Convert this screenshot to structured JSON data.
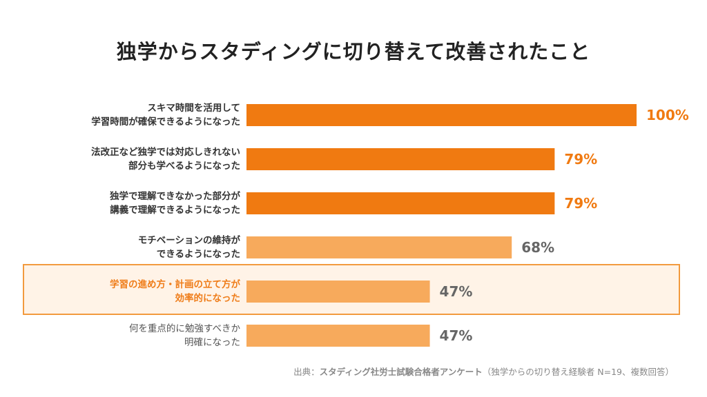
{
  "title": "独学からスタディングに切り替えて改善されたこと",
  "chart_data": {
    "type": "bar",
    "orientation": "horizontal",
    "xlim": [
      0,
      100
    ],
    "categories": [
      [
        "スキマ時間を活用して",
        "学習時間が確保できるようになった"
      ],
      [
        "法改正など独学では対応しきれない",
        "部分も学べるようになった"
      ],
      [
        "独学で理解できなかった部分が",
        "講義で理解できるようになった"
      ],
      [
        "モチベーションの維持が",
        "できるようになった"
      ],
      [
        "学習の進め方・計画の立て方が",
        "効率的になった"
      ],
      [
        "何を重点的に勉強すべきか",
        "明確になった"
      ]
    ],
    "values": [
      100,
      79,
      79,
      68,
      47,
      47
    ],
    "value_labels": [
      "100%",
      "79%",
      "79%",
      "68%",
      "47%",
      "47%"
    ],
    "bar_colors": [
      "#f07a11",
      "#f07a11",
      "#f07a11",
      "#f7aa5c",
      "#f7aa5c",
      "#f7aa5c"
    ],
    "value_label_colors": [
      "#f07a11",
      "#f07a11",
      "#f07a11",
      "#666666",
      "#666666",
      "#666666"
    ],
    "highlighted_index": 4,
    "unit": "%"
  },
  "source": {
    "prefix": "出典：",
    "bold": "スタディング社労士試験合格者アンケート",
    "suffix": "（独学からの切り替え経験者 N=19、複数回答）"
  },
  "colors": {
    "accent": "#f07a11",
    "light_bar": "#f7aa5c",
    "highlight_bg": "#fff3e7",
    "highlight_border": "#f29a3e"
  }
}
